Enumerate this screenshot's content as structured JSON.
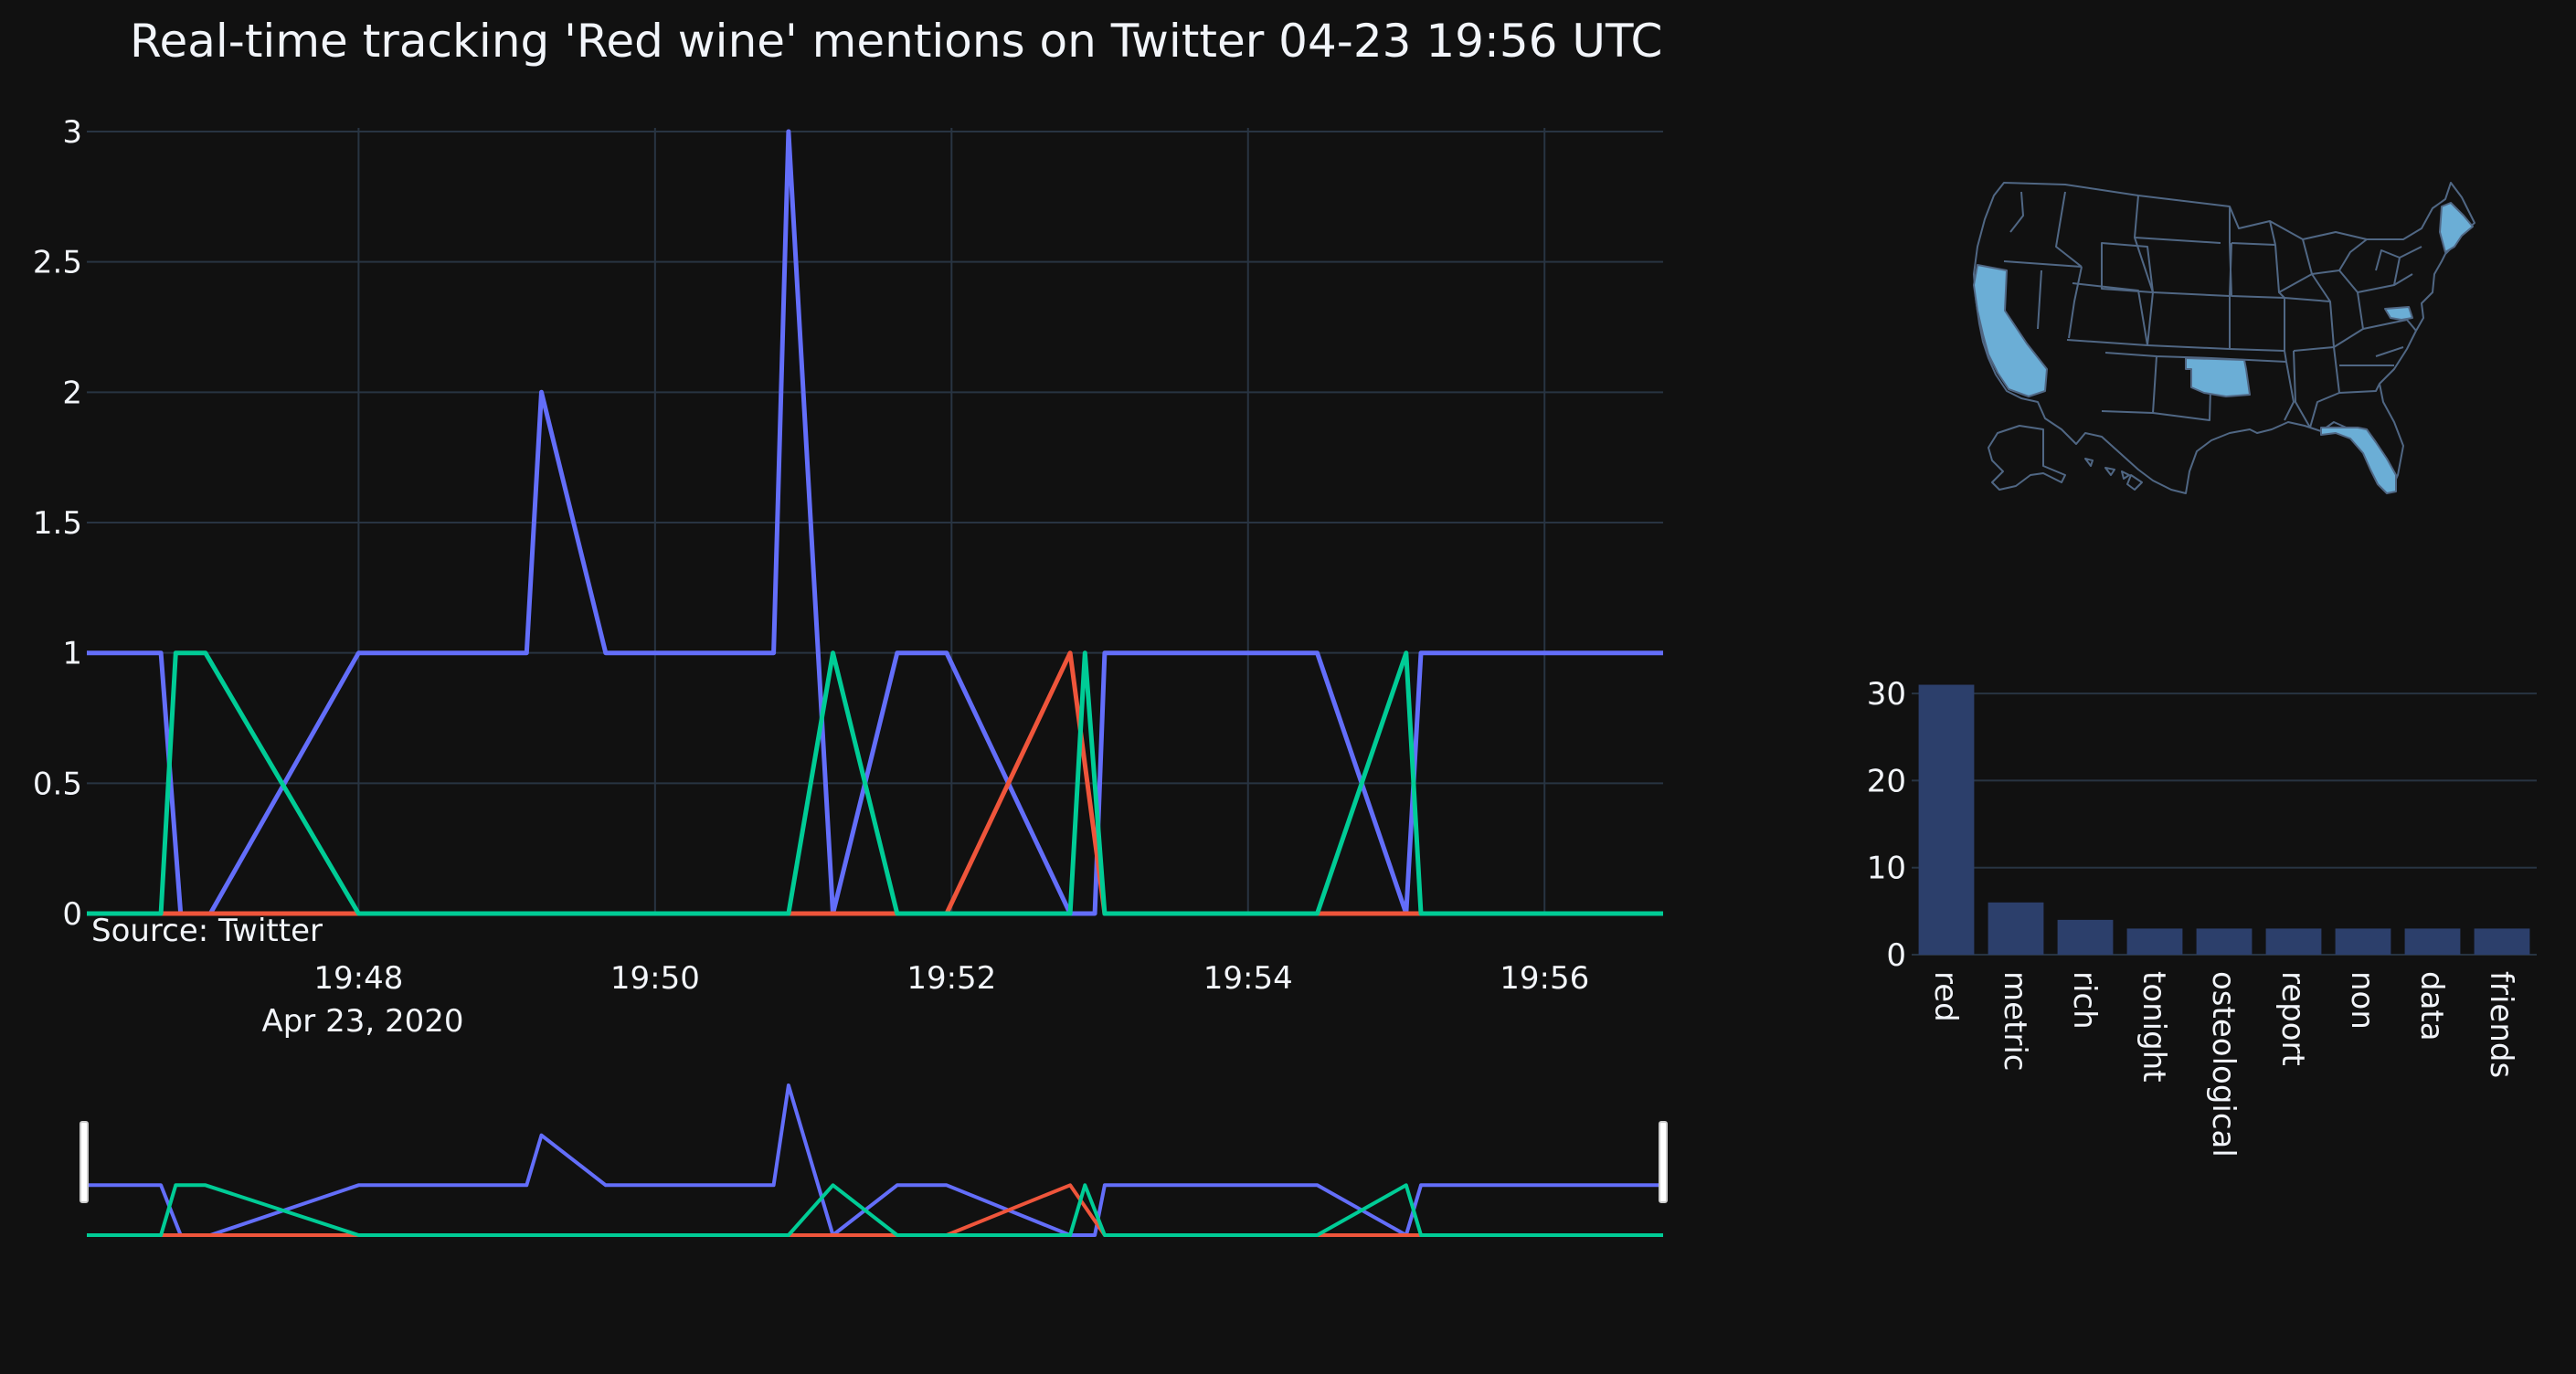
{
  "title": "Real-time tracking 'Red wine' mentions on Twitter 04-23 19:56 UTC",
  "source_label": "Source: Twitter",
  "colors": {
    "background": "#111111",
    "grid": "#283442",
    "text": "#f2f5fa",
    "series_blue": "#636efa",
    "series_red": "#ef553b",
    "series_green": "#00cc96",
    "bar_fill": "#2c3f6b",
    "map_highlight": "#6baed6",
    "map_border": "#506784",
    "rangeslider_handle": "#ffffff"
  },
  "chart_data": [
    {
      "type": "line",
      "x_date_label": "Apr 23, 2020",
      "ylim": [
        0,
        3
      ],
      "xlim": [
        "19:46:10",
        "19:56:48"
      ],
      "y_ticks": [
        "0",
        "0.5",
        "1",
        "1.5",
        "2",
        "2.5",
        "3"
      ],
      "x_ticks": [
        "19:48",
        "19:50",
        "19:52",
        "19:54",
        "19:56"
      ],
      "grid": true,
      "rangeslider": true,
      "series": [
        {
          "color_key": "series_blue",
          "points": [
            [
              "19:46:10",
              1
            ],
            [
              "19:46:40",
              1
            ],
            [
              "19:46:48",
              0
            ],
            [
              "19:47:00",
              0
            ],
            [
              "19:48:00",
              1
            ],
            [
              "19:49:08",
              1
            ],
            [
              "19:49:14",
              2
            ],
            [
              "19:49:40",
              1
            ],
            [
              "19:50:48",
              1
            ],
            [
              "19:50:54",
              3
            ],
            [
              "19:51:12",
              0
            ],
            [
              "19:51:38",
              1
            ],
            [
              "19:51:58",
              1
            ],
            [
              "19:52:48",
              0
            ],
            [
              "19:52:58",
              0
            ],
            [
              "19:53:02",
              1
            ],
            [
              "19:54:28",
              1
            ],
            [
              "19:55:04",
              0
            ],
            [
              "19:55:10",
              1
            ],
            [
              "19:56:48",
              1
            ]
          ]
        },
        {
          "color_key": "series_red",
          "points": [
            [
              "19:46:10",
              0
            ],
            [
              "19:51:58",
              0
            ],
            [
              "19:52:48",
              1
            ],
            [
              "19:53:02",
              0
            ],
            [
              "19:56:48",
              0
            ]
          ]
        },
        {
          "color_key": "series_green",
          "points": [
            [
              "19:46:10",
              0
            ],
            [
              "19:46:40",
              0
            ],
            [
              "19:46:46",
              1
            ],
            [
              "19:46:58",
              1
            ],
            [
              "19:48:00",
              0
            ],
            [
              "19:50:54",
              0
            ],
            [
              "19:51:12",
              1
            ],
            [
              "19:51:38",
              0
            ],
            [
              "19:52:48",
              0
            ],
            [
              "19:52:54",
              1
            ],
            [
              "19:53:02",
              0
            ],
            [
              "19:54:28",
              0
            ],
            [
              "19:55:04",
              1
            ],
            [
              "19:55:10",
              0
            ],
            [
              "19:56:48",
              0
            ]
          ]
        }
      ]
    },
    {
      "type": "bar",
      "categories": [
        "red",
        "metric",
        "rich",
        "tonight",
        "osteological",
        "report",
        "non",
        "data",
        "friends"
      ],
      "values": [
        31,
        6,
        4,
        3,
        3,
        3,
        3,
        3,
        3
      ],
      "ylim": [
        0,
        32
      ],
      "y_ticks": [
        "0",
        "10",
        "20",
        "30"
      ],
      "grid": true
    },
    {
      "type": "choropleth",
      "region": "USA states",
      "highlighted_states": [
        "California",
        "Oklahoma",
        "Florida",
        "Maine",
        "Maryland"
      ]
    }
  ]
}
